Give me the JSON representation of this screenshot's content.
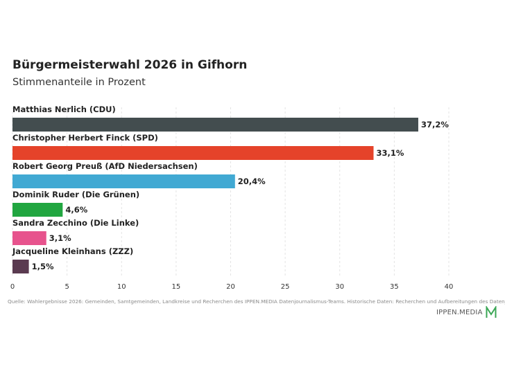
{
  "title": "Bürgermeisterwahl 2026 in Gifhorn",
  "subtitle": "Stimmenanteile in Prozent",
  "chart_data": {
    "type": "bar",
    "orientation": "horizontal",
    "categories": [
      "Matthias Nerlich (CDU)",
      "Christopher Herbert Finck (SPD)",
      "Robert Georg Preuß (AfD Niedersachsen)",
      "Dominik Ruder (Die Grünen)",
      "Sandra Zecchino (Die Linke)",
      "Jacqueline Kleinhans (ZZZ)"
    ],
    "values": [
      37.2,
      33.1,
      20.4,
      4.6,
      3.1,
      1.5
    ],
    "value_labels": [
      "37,2%",
      "33,1%",
      "20,4%",
      "4,6%",
      "3,1%",
      "1,5%"
    ],
    "colors": [
      "#434d4f",
      "#e5432a",
      "#41a9d3",
      "#21a640",
      "#e7538d",
      "#5a3a50"
    ],
    "xlim": [
      0,
      40
    ],
    "xticks": [
      0,
      5,
      10,
      15,
      20,
      25,
      30,
      35,
      40
    ],
    "xlabel": "",
    "ylabel": "",
    "grid": "vertical dashed"
  },
  "source": "Quelle: Wahlergebnisse 2026: Gemeinden, Samtgemeinden, Landkreise und Recherchen des IPPEN.MEDIA Datenjournalismus-Teams. Historische Daten: Recherchen und Aufbereitungen des Datenjournalismus-Teams.",
  "logo": {
    "text": "IPPEN.MEDIA",
    "mark_color": "#3aa655"
  }
}
